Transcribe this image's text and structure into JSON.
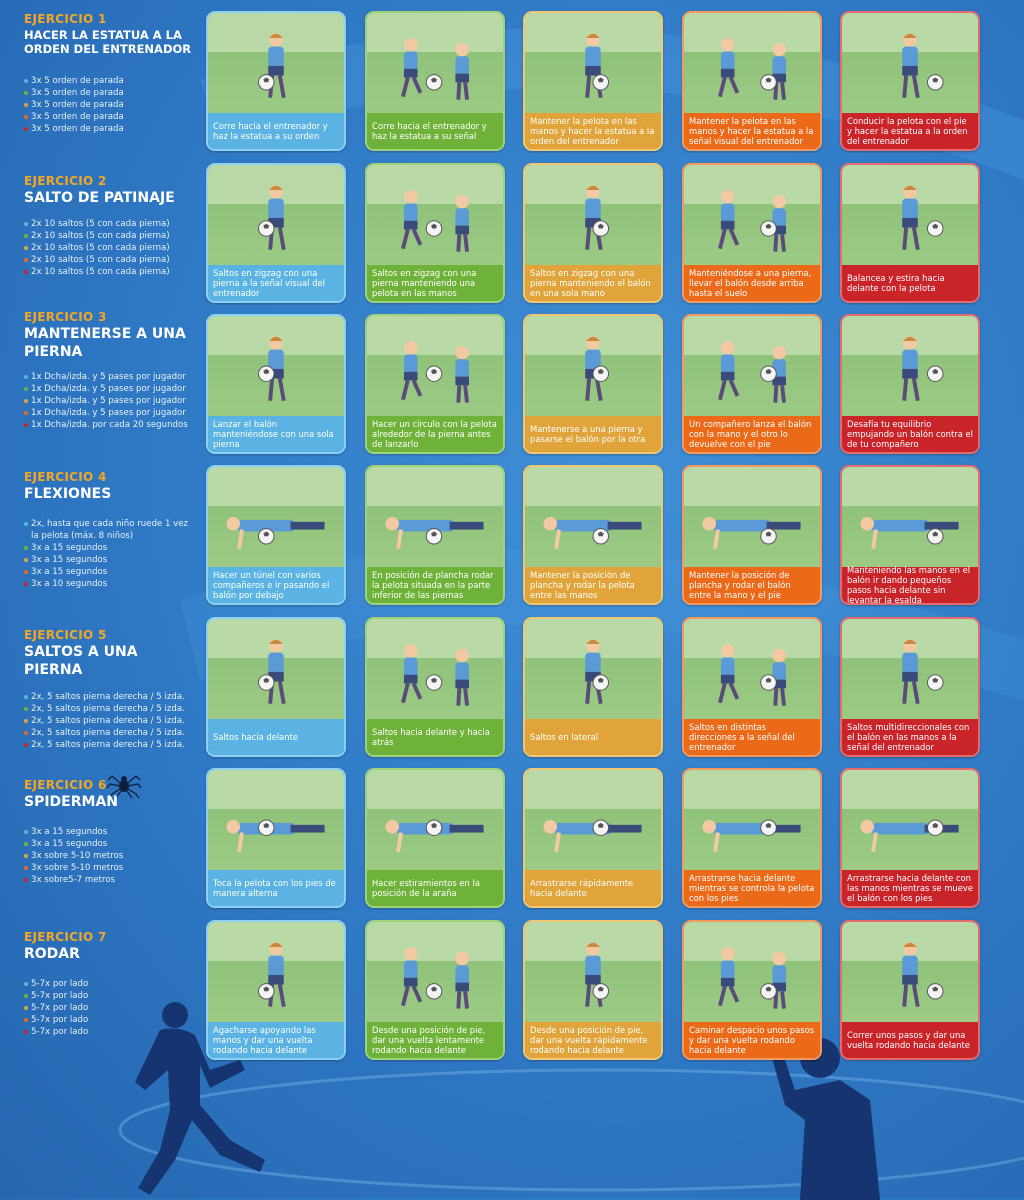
{
  "colors": {
    "background": "#2f78c4",
    "heading_accent": "#f5a623",
    "level_colors": [
      "#5bb3e3",
      "#6fb23a",
      "#e0a43a",
      "#ea6a1a",
      "#c8242a"
    ]
  },
  "exercises": [
    {
      "number": "EJERCICIO 1",
      "title": "HACER LA ESTATUA A LA ORDEN DEL ENTRENADOR",
      "reps": [
        "3x 5 orden de parada",
        "3x 5 orden de parada",
        "3x 5 orden de parada",
        "3x 5 orden de parada",
        "3x 5 orden de parada"
      ],
      "cards": [
        "Corre hacia el entrenador y haz la estatua a su orden",
        "Corre hacia el entrenador y haz la estatua a su señal",
        "Mantener la pelota en las manos y hacer la estatua a la orden del entrenador",
        "Mantener la pelota en las manos y hacer la estatua a la señal visual del entrenador",
        "Conducir la pelota con el pie y hacer la estatua a la orden del entrenador"
      ]
    },
    {
      "number": "EJERCICIO 2",
      "title": "SALTO DE PATINAJE",
      "reps": [
        "2x 10 saltos (5 con cada pierna)",
        "2x 10 saltos (5 con cada pierna)",
        "2x 10 saltos (5 con cada pierna)",
        "2x 10 saltos (5 con cada pierna)",
        "2x 10 saltos (5 con cada pierna)"
      ],
      "cards": [
        "Saltos en zigzag con una pierna a la señal visual del entrenador",
        "Saltos en zigzag con una pierna manteniendo una pelota en las manos",
        "Saltos en zigzag con una pierna manteniendo el balón en una sola mano",
        "Manteniéndose a una pierna, llevar el balón desde arriba hasta el suelo",
        "Balancea y estira hacia delante con la pelota"
      ]
    },
    {
      "number": "EJERCICIO 3",
      "title": "MANTENERSE A UNA PIERNA",
      "reps": [
        "1x Dcha/izda. y 5 pases por jugador",
        "1x Dcha/izda. y 5 pases por jugador",
        "1x Dcha/izda. y 5 pases por jugador",
        "1x Dcha/izda. y 5 pases por jugador",
        "1x Dcha/izda. por cada 20 segundos"
      ],
      "cards": [
        "Lanzar el balón manteniéndose con una sola pierna",
        "Hacer un círculo con la pelota alrededor de la pierna antes de lanzarlo",
        "Mantenerse a una pierna y pasarse el balón por la otra",
        "Un compañero lanza el balón con la mano y el otro lo devuelve con el pie",
        "Desafía tu equilibrio empujando un balón contra el de tu compañero"
      ]
    },
    {
      "number": "EJERCICIO 4",
      "title": "FLEXIONES",
      "reps": [
        "2x, hasta que cada niño ruede 1 vez la pelota (máx. 8 niños)",
        "3x a 15 segundos",
        "3x a 15 segundos",
        "3x a 15 segundos",
        "3x a 10 segundos"
      ],
      "cards": [
        "Hacer un túnel con varios compañeros e ir pasando el balón por debajo",
        "En posición de plancha rodar la pelota situada en la parte inferior de las piernas",
        "Mantener la posición de plancha y rodar la pelota entre las manos",
        "Mantener la posición de plancha y rodar el balón entre la mano y el pie",
        "Manteniendo las manos en el balón ir dando pequeños pasos hacia delante sin levantar la esalda"
      ]
    },
    {
      "number": "EJERCICIO 5",
      "title": "SALTOS A UNA PIERNA",
      "reps": [
        "2x, 5 saltos pierna derecha / 5 izda.",
        "2x, 5 saltos pierna derecha / 5 izda.",
        "2x, 5 saltos pierna derecha / 5 izda.",
        "2x, 5 saltos pierna derecha / 5 izda.",
        "2x, 5 saltos pierna derecha / 5 izda."
      ],
      "cards": [
        "Saltos hacia delante",
        "Saltos hacia delante y hacia atrás",
        "Saltos en lateral",
        "Saltos en distintas direcciones a la señal del entrenador",
        "Saltos multidireccionales con el balón en las manos a la señal del entrenador"
      ]
    },
    {
      "number": "EJERCICIO 6",
      "title": "SPIDERMAN",
      "reps": [
        "3x a 15 segundos",
        "3x a 15 segundos",
        "3x sobre 5-10 metros",
        "3x sobre 5-10 metros",
        "3x sobre5-7 metros"
      ],
      "cards": [
        "Toca la pelota con los pies de manera alterna",
        "Hacer estiramientos en la posición de la araña",
        "Arrastrarse rápidamente hacia delante",
        "Arrastrarse hacia delante mientras se controla la pelota con los pies",
        "Arrastrarse hacia delante con las manos mientras se mueve el balón con los pies"
      ]
    },
    {
      "number": "EJERCICIO 7",
      "title": "RODAR",
      "reps": [
        "5-7x por lado",
        "5-7x por lado",
        "5-7x por lado",
        "5-7x por lado",
        "5-7x por lado"
      ],
      "cards": [
        "Agacharse apoyando las manos y dar una vuelta rodando hacia delante",
        "Desde una posición de pie, dar una vuelta lentamente rodando hacia delante",
        "Desde una posición de pie, dar una vuelta rápidamente rodando hacia delante",
        "Caminar despacio unos pasos y dar una vuelta rodando hacia delante",
        "Correr unos pasos y dar una vuelta rodando hacia delante"
      ]
    }
  ]
}
